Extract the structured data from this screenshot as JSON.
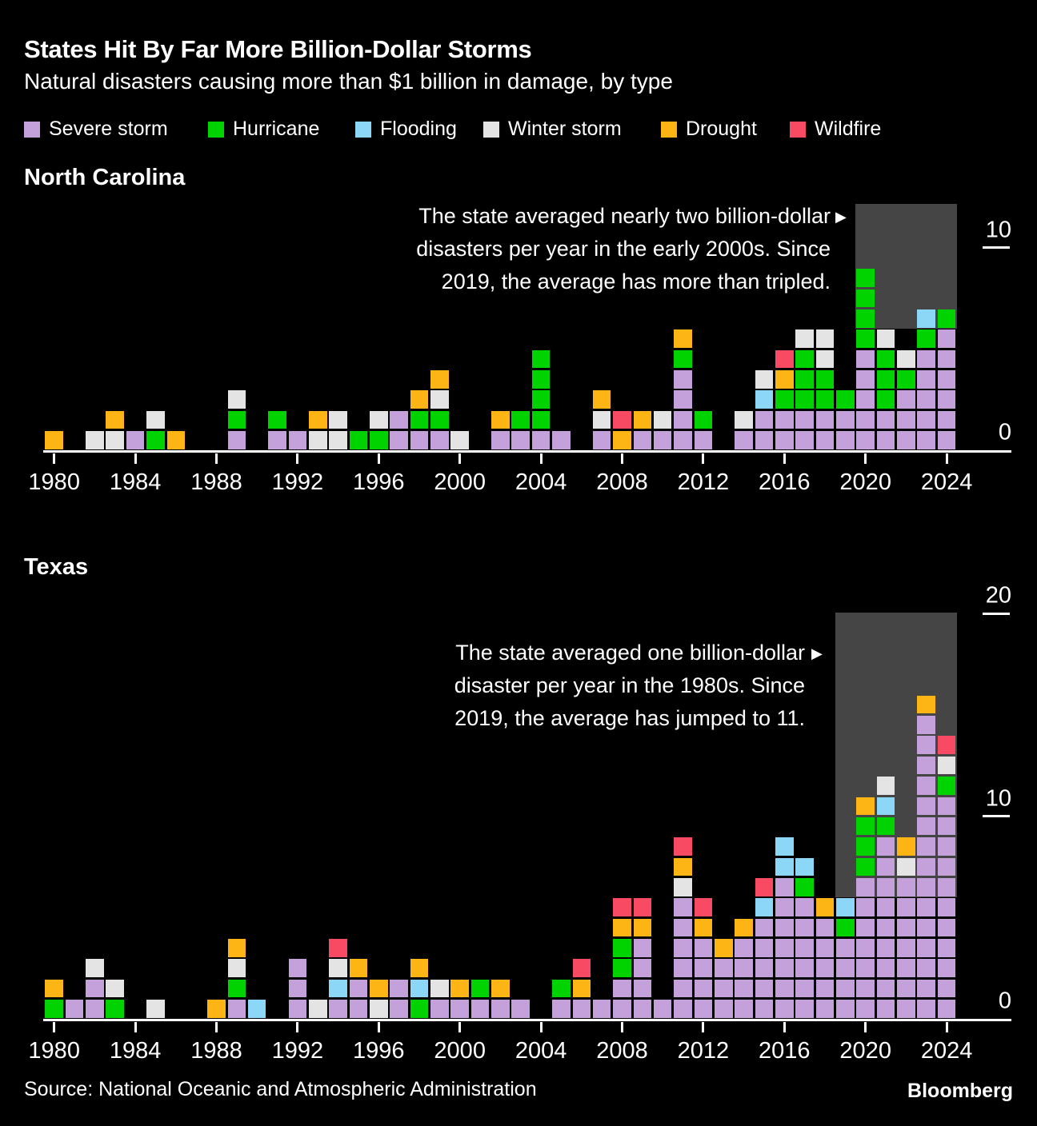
{
  "title": "States Hit By Far More Billion-Dollar Storms",
  "subtitle": "Natural disasters causing more than $1 billion in damage, by type",
  "legend": [
    {
      "code": "S",
      "label": "Severe storm",
      "color": "#C5A1DC"
    },
    {
      "code": "H",
      "label": "Hurricane",
      "color": "#00D300"
    },
    {
      "code": "F",
      "label": "Flooding",
      "color": "#8CD6F7"
    },
    {
      "code": "W",
      "label": "Winter storm",
      "color": "#E4E4E4"
    },
    {
      "code": "D",
      "label": "Drought",
      "color": "#FDB515"
    },
    {
      "code": "X",
      "label": "Wildfire",
      "color": "#F94A63"
    }
  ],
  "source": "Source: National Oceanic and Atmospheric Administration",
  "brand": "Bloomberg",
  "chart_data": [
    {
      "type": "bar",
      "variant": "stacked-unit-blocks",
      "title": "North Carolina",
      "block_unit": "1 block = 1 billion-dollar disaster",
      "annotation": {
        "lines": [
          "The state averaged nearly two billion-dollar",
          "disasters per year in the early 2000s. Since",
          "2019, the average has more than tripled."
        ],
        "arrow": "▶"
      },
      "y_ticks": [
        10,
        0
      ],
      "x_ticks": [
        1980,
        1984,
        1988,
        1992,
        1996,
        2000,
        2004,
        2008,
        2012,
        2016,
        2020,
        2024
      ],
      "highlight_years": [
        2020,
        2024
      ],
      "stacks": {
        "1980": [
          "D"
        ],
        "1981": [],
        "1982": [
          "W"
        ],
        "1983": [
          "W",
          "D"
        ],
        "1984": [
          "S"
        ],
        "1985": [
          "H",
          "W"
        ],
        "1986": [
          "D"
        ],
        "1987": [],
        "1988": [],
        "1989": [
          "S",
          "H",
          "W"
        ],
        "1990": [],
        "1991": [
          "S",
          "H"
        ],
        "1992": [
          "S"
        ],
        "1993": [
          "W",
          "D"
        ],
        "1994": [
          "W",
          "W"
        ],
        "1995": [
          "H"
        ],
        "1996": [
          "H",
          "W"
        ],
        "1997": [
          "S",
          "S"
        ],
        "1998": [
          "S",
          "H",
          "D"
        ],
        "1999": [
          "S",
          "H",
          "W",
          "D"
        ],
        "2000": [
          "W"
        ],
        "2001": [],
        "2002": [
          "S",
          "D"
        ],
        "2003": [
          "S",
          "H"
        ],
        "2004": [
          "S",
          "H",
          "H",
          "H",
          "H"
        ],
        "2005": [
          "S"
        ],
        "2006": [],
        "2007": [
          "S",
          "W",
          "D"
        ],
        "2008": [
          "D",
          "X"
        ],
        "2009": [
          "S",
          "D"
        ],
        "2010": [
          "S",
          "W"
        ],
        "2011": [
          "S",
          "S",
          "S",
          "S",
          "H",
          "D"
        ],
        "2012": [
          "S",
          "H"
        ],
        "2013": [],
        "2014": [
          "S",
          "W"
        ],
        "2015": [
          "S",
          "S",
          "F",
          "W"
        ],
        "2016": [
          "S",
          "S",
          "H",
          "D",
          "X"
        ],
        "2017": [
          "S",
          "S",
          "H",
          "H",
          "H",
          "W"
        ],
        "2018": [
          "S",
          "S",
          "H",
          "H",
          "W",
          "W"
        ],
        "2019": [
          "S",
          "S",
          "H"
        ],
        "2020": [
          "S",
          "S",
          "S",
          "S",
          "S",
          "H",
          "H",
          "H",
          "H"
        ],
        "2021": [
          "S",
          "S",
          "H",
          "H",
          "H",
          "W"
        ],
        "2022": [
          "S",
          "S",
          "S",
          "H",
          "W"
        ],
        "2023": [
          "S",
          "S",
          "S",
          "S",
          "S",
          "H",
          "F"
        ],
        "2024": [
          "S",
          "S",
          "S",
          "S",
          "S",
          "S",
          "H"
        ]
      }
    },
    {
      "type": "bar",
      "variant": "stacked-unit-blocks",
      "title": "Texas",
      "block_unit": "1 block = 1 billion-dollar disaster",
      "annotation": {
        "lines": [
          "The state averaged one billion-dollar",
          "disaster per year in the 1980s. Since",
          "2019, the average has jumped to 11."
        ],
        "arrow": "▶"
      },
      "y_ticks": [
        20,
        10,
        0
      ],
      "x_ticks": [
        1980,
        1984,
        1988,
        1992,
        1996,
        2000,
        2004,
        2008,
        2012,
        2016,
        2020,
        2024
      ],
      "highlight_years": [
        2019,
        2024
      ],
      "stacks": {
        "1980": [
          "H",
          "D"
        ],
        "1981": [
          "S"
        ],
        "1982": [
          "S",
          "S",
          "W"
        ],
        "1983": [
          "H",
          "W"
        ],
        "1984": [],
        "1985": [
          "W"
        ],
        "1986": [],
        "1987": [],
        "1988": [
          "D"
        ],
        "1989": [
          "S",
          "H",
          "W",
          "D"
        ],
        "1990": [
          "F"
        ],
        "1991": [],
        "1992": [
          "S",
          "S",
          "S"
        ],
        "1993": [
          "W"
        ],
        "1994": [
          "S",
          "F",
          "W",
          "X"
        ],
        "1995": [
          "S",
          "S",
          "D"
        ],
        "1996": [
          "W",
          "D"
        ],
        "1997": [
          "S",
          "S"
        ],
        "1998": [
          "H",
          "F",
          "D"
        ],
        "1999": [
          "S",
          "W"
        ],
        "2000": [
          "S",
          "D"
        ],
        "2001": [
          "S",
          "H"
        ],
        "2002": [
          "S",
          "D"
        ],
        "2003": [
          "S"
        ],
        "2004": [],
        "2005": [
          "S",
          "H"
        ],
        "2006": [
          "S",
          "D",
          "X"
        ],
        "2007": [
          "S"
        ],
        "2008": [
          "S",
          "S",
          "H",
          "H",
          "D",
          "X"
        ],
        "2009": [
          "S",
          "S",
          "S",
          "S",
          "D",
          "X"
        ],
        "2010": [
          "S"
        ],
        "2011": [
          "S",
          "S",
          "S",
          "S",
          "S",
          "S",
          "W",
          "D",
          "X"
        ],
        "2012": [
          "S",
          "S",
          "S",
          "S",
          "D",
          "X"
        ],
        "2013": [
          "S",
          "S",
          "S",
          "D"
        ],
        "2014": [
          "S",
          "S",
          "S",
          "S",
          "D"
        ],
        "2015": [
          "S",
          "S",
          "S",
          "S",
          "S",
          "F",
          "X"
        ],
        "2016": [
          "S",
          "S",
          "S",
          "S",
          "S",
          "S",
          "S",
          "F",
          "F"
        ],
        "2017": [
          "S",
          "S",
          "S",
          "S",
          "S",
          "S",
          "H",
          "F"
        ],
        "2018": [
          "S",
          "S",
          "S",
          "S",
          "S",
          "D"
        ],
        "2019": [
          "S",
          "S",
          "S",
          "S",
          "H",
          "F"
        ],
        "2020": [
          "S",
          "S",
          "S",
          "S",
          "S",
          "S",
          "S",
          "H",
          "H",
          "H",
          "D"
        ],
        "2021": [
          "S",
          "S",
          "S",
          "S",
          "S",
          "S",
          "S",
          "S",
          "S",
          "H",
          "F",
          "W"
        ],
        "2022": [
          "S",
          "S",
          "S",
          "S",
          "S",
          "S",
          "S",
          "W",
          "D"
        ],
        "2023": [
          "S",
          "S",
          "S",
          "S",
          "S",
          "S",
          "S",
          "S",
          "S",
          "S",
          "S",
          "S",
          "S",
          "S",
          "S",
          "D"
        ],
        "2024": [
          "S",
          "S",
          "S",
          "S",
          "S",
          "S",
          "S",
          "S",
          "S",
          "S",
          "S",
          "H",
          "W",
          "X"
        ]
      }
    }
  ]
}
